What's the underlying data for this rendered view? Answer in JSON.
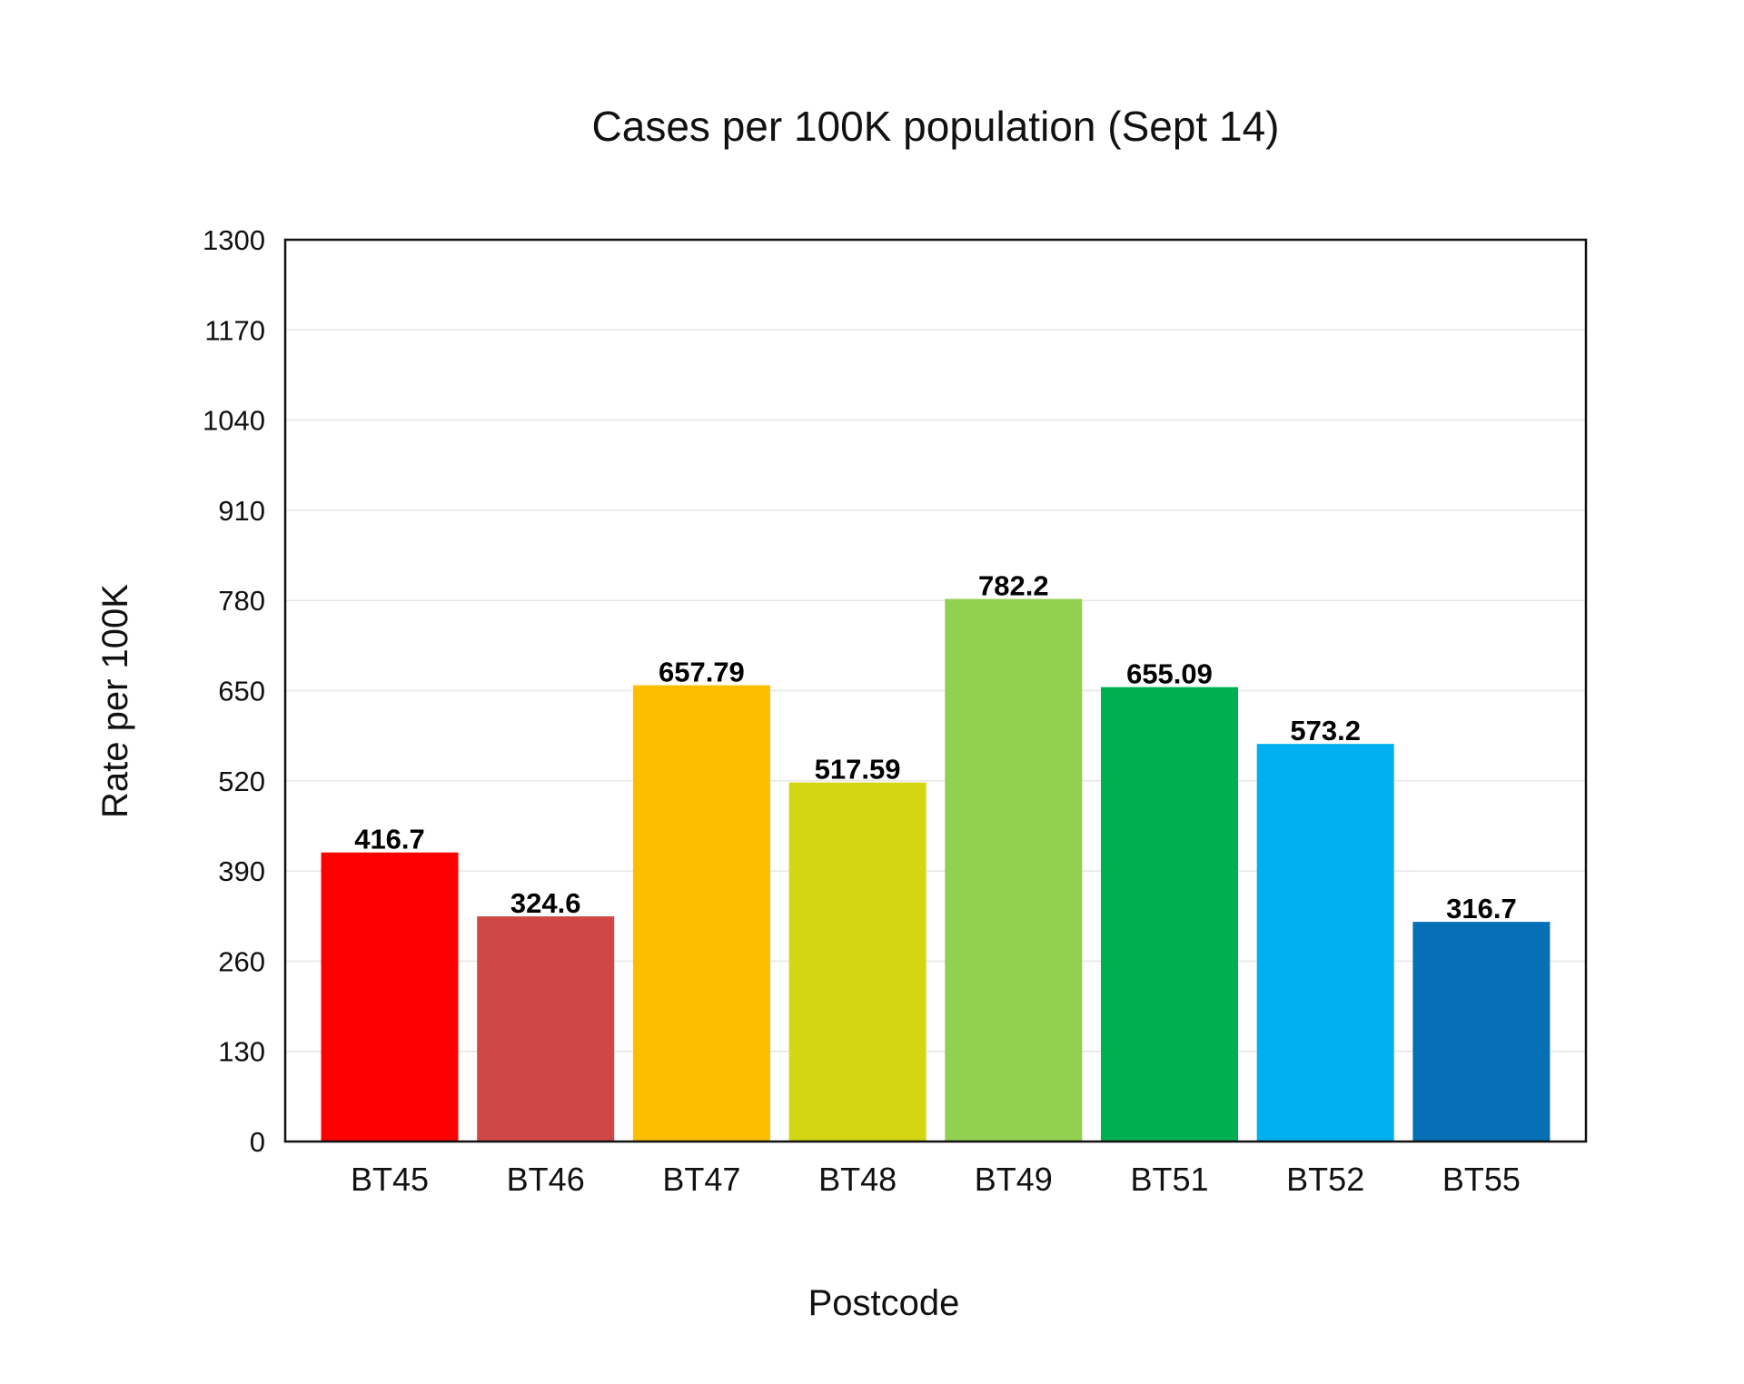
{
  "chart_data": {
    "type": "bar",
    "title": "Cases per 100K population (Sept 14)",
    "xlabel": "Postcode",
    "ylabel": "Rate per 100K",
    "categories": [
      "BT45",
      "BT46",
      "BT47",
      "BT48",
      "BT49",
      "BT51",
      "BT52",
      "BT55"
    ],
    "values": [
      416.7,
      324.6,
      657.79,
      517.59,
      782.2,
      655.09,
      573.2,
      316.7
    ],
    "value_labels": [
      "416.7",
      "324.6",
      "657.79",
      "517.59",
      "782.2",
      "655.09",
      "573.2",
      "316.7"
    ],
    "colors": [
      "#ff0000",
      "#d14747",
      "#fdbe00",
      "#d4d611",
      "#92d050",
      "#00b050",
      "#00b0f0",
      "#066fb5"
    ],
    "yticks": [
      0,
      130,
      260,
      390,
      520,
      650,
      780,
      910,
      1040,
      1170,
      1300
    ],
    "ytick_labels": [
      "0",
      "130",
      "260",
      "390",
      "520",
      "650",
      "780",
      "910",
      "1040",
      "1170",
      "1300"
    ],
    "ylim": [
      0,
      1300
    ],
    "grid": true,
    "legend": false
  }
}
